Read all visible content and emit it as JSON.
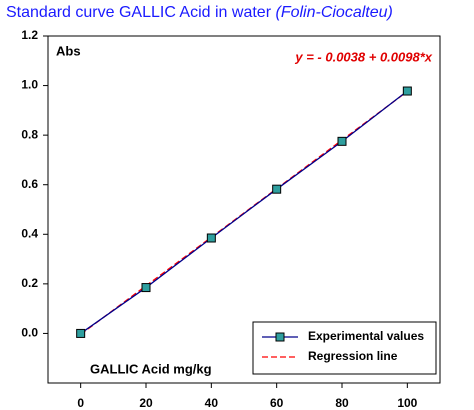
{
  "chart_data": {
    "type": "line",
    "title": "Standard curve GALLIC Acid in water",
    "title_note": "(Folin-Ciocalteu)",
    "ylabel": "Abs",
    "xlabel": "GALLIC Acid  mg/kg",
    "annotation": "y = - 0.0038 + 0.0098*x",
    "xlim": [
      -10,
      110
    ],
    "xticks": [
      0,
      20,
      40,
      60,
      80,
      100
    ],
    "ylim": [
      -0.2,
      1.2
    ],
    "yticks": [
      {
        "value": 0,
        "label": "0.0"
      },
      0.2,
      0.4,
      0.6,
      0.8,
      {
        "value": 1,
        "label": "1.0"
      },
      1.2
    ],
    "grid": false,
    "legend": "lower right",
    "series": [
      {
        "name": "Experimental values",
        "color": "#00008b",
        "marker_color": "#2f9f9f",
        "dashed": false,
        "x": [
          0,
          20,
          40,
          60,
          80,
          100
        ],
        "values": [
          0,
          0.185,
          0.385,
          0.582,
          0.775,
          0.978
        ]
      },
      {
        "name": "Regression line",
        "color": "#ff0000",
        "dashed": true,
        "x": [
          0,
          100
        ],
        "values": [
          -0.0038,
          0.9762
        ]
      }
    ]
  }
}
